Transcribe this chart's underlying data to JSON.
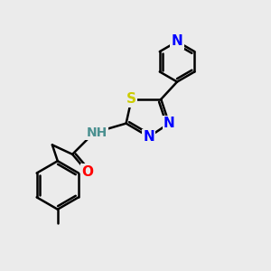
{
  "background_color": "#ebebeb",
  "bond_color": "#000000",
  "atom_colors": {
    "N": "#0000ff",
    "S": "#cccc00",
    "O": "#ff0000",
    "H": "#4a9090",
    "C": "#000000"
  },
  "font_size": 10,
  "bond_width": 1.8,
  "figsize": [
    3.0,
    3.0
  ],
  "dpi": 100
}
